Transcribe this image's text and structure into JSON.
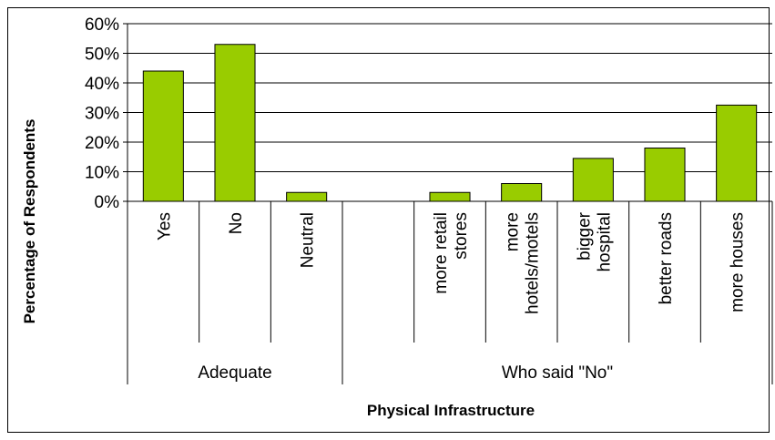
{
  "chart_data": {
    "type": "bar",
    "xlabel": "Physical Infrastructure",
    "ylabel": "Percentage of Respondents",
    "ylim": [
      0,
      60
    ],
    "y_ticks": [
      "0%",
      "10%",
      "20%",
      "30%",
      "40%",
      "50%",
      "60%"
    ],
    "grid": "horizontal",
    "groups": [
      {
        "label": "Adequate",
        "categories": [
          "Yes",
          "No",
          "Neutral"
        ]
      },
      {
        "label": "Who said \"No\"",
        "categories": [
          "",
          "more retail stores",
          "more hotels/motels",
          "bigger hospital",
          "better roads",
          "more houses"
        ]
      }
    ],
    "categories": [
      "Yes",
      "No",
      "Neutral",
      "",
      "more retail stores",
      "more hotels/motels",
      "bigger hospital",
      "better roads",
      "more houses"
    ],
    "category_lines": [
      [
        "Yes"
      ],
      [
        "No"
      ],
      [
        "Neutral"
      ],
      [],
      [
        "more retail",
        "stores"
      ],
      [
        "more",
        "hotels/motels"
      ],
      [
        "bigger",
        "hospital"
      ],
      [
        "better roads"
      ],
      [
        "more houses"
      ]
    ],
    "values": [
      44,
      53,
      3,
      null,
      3,
      6,
      14.5,
      18,
      32.5
    ],
    "bar_color": "#99cc00",
    "bar_edge_color": "#000000"
  }
}
